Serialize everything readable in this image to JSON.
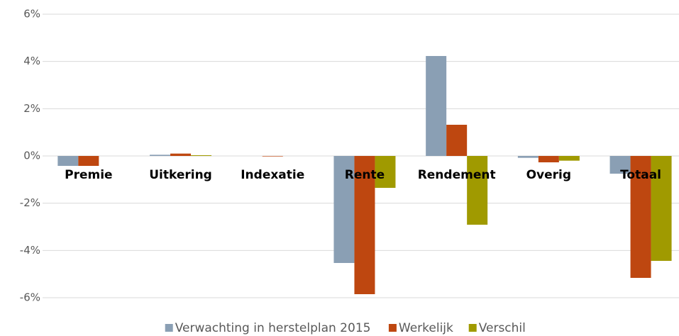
{
  "chart_data": {
    "type": "bar",
    "categories": [
      "Premie",
      "Uitkering",
      "Indexatie",
      "Rente",
      "Rendement",
      "Overig",
      "Totaal"
    ],
    "series": [
      {
        "name": "Verwachting in herstelplan 2015",
        "color": "#8a9fb4",
        "values": [
          -0.42,
          0.05,
          0,
          -4.53,
          4.23,
          -0.08,
          -0.75
        ]
      },
      {
        "name": "Werkelijk",
        "color": "#be4710",
        "values": [
          -0.42,
          0.1,
          -0.02,
          -5.85,
          1.32,
          -0.27,
          -5.16
        ]
      },
      {
        "name": "Verschil",
        "color": "#a09a00",
        "values": [
          0,
          0.03,
          0,
          -1.35,
          -2.91,
          -0.2,
          -4.44
        ]
      }
    ],
    "ylim": [
      -7,
      6
    ],
    "yticks": [
      {
        "value": -6,
        "label": "-6%"
      },
      {
        "value": -4,
        "label": "-4%"
      },
      {
        "value": -2,
        "label": "-2%"
      },
      {
        "value": 0,
        "label": "0%"
      },
      {
        "value": 2,
        "label": "2%"
      },
      {
        "value": 4,
        "label": "4%"
      },
      {
        "value": 6,
        "label": "6%"
      }
    ],
    "grid": true,
    "legend": "bottom"
  }
}
